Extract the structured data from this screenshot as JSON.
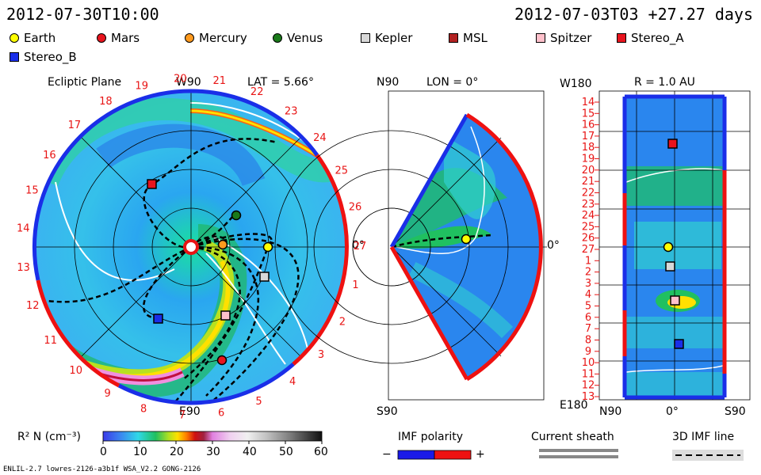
{
  "header": {
    "left_time": "2012-07-30T10:00",
    "right_time": "2012-07-03T03 +27.27 days"
  },
  "legend": [
    {
      "label": "Earth",
      "shape": "dot",
      "color": "#ffff00"
    },
    {
      "label": "Mars",
      "shape": "dot",
      "color": "#e8141e"
    },
    {
      "label": "Mercury",
      "shape": "dot",
      "color": "#ff9a1e"
    },
    {
      "label": "Venus",
      "shape": "dot",
      "color": "#1a7a1a"
    },
    {
      "label": "Kepler",
      "shape": "square",
      "color": "#d8d8d8"
    },
    {
      "label": "MSL",
      "shape": "square",
      "color": "#b22222"
    },
    {
      "label": "Spitzer",
      "shape": "square",
      "color": "#ffc0cb"
    },
    {
      "label": "Stereo_A",
      "shape": "square",
      "color": "#e8141e"
    },
    {
      "label": "Stereo_B",
      "shape": "square",
      "color": "#1a2ee8"
    }
  ],
  "panels": {
    "ecliptic": {
      "title": "Ecliptic Plane",
      "w90": "W90",
      "lat": "LAT = 5.66°",
      "e90": "E90",
      "zero": "0°",
      "carrington": [
        "1",
        "2",
        "3",
        "4",
        "5",
        "6",
        "7",
        "8",
        "9",
        "10",
        "11",
        "12",
        "13",
        "14",
        "15",
        "16",
        "17",
        "18",
        "19",
        "20",
        "21",
        "22",
        "23",
        "24",
        "25",
        "26",
        "27"
      ]
    },
    "meridional": {
      "n90": "N90",
      "lon": "LON = 0°",
      "s90": "S90",
      "zero": "0°"
    },
    "radial": {
      "w180": "W180",
      "r": "R = 1.0 AU",
      "e180": "E180",
      "n90": "N90",
      "s90": "S90",
      "zero": "0°",
      "rows": [
        "14",
        "15",
        "16",
        "17",
        "18",
        "19",
        "20",
        "21",
        "22",
        "23",
        "24",
        "25",
        "26",
        "27",
        "1",
        "2",
        "3",
        "4",
        "5",
        "6",
        "7",
        "8",
        "9",
        "10",
        "11",
        "12",
        "13"
      ]
    }
  },
  "colorbar": {
    "title": "R² N (cm⁻³)",
    "ticks": [
      "0",
      "10",
      "20",
      "30",
      "40",
      "50",
      "60"
    ]
  },
  "imf": {
    "title": "IMF polarity",
    "minus": "−",
    "plus": "+",
    "negative_color": "#1a1ae8",
    "positive_color": "#ee1111"
  },
  "current_sheath": {
    "title": "Current sheath"
  },
  "imf_line": {
    "title": "3D IMF line"
  },
  "footer": "ENLIL-2.7 lowres-2126-a3b1f WSA_V2.2 GONG-2126"
}
